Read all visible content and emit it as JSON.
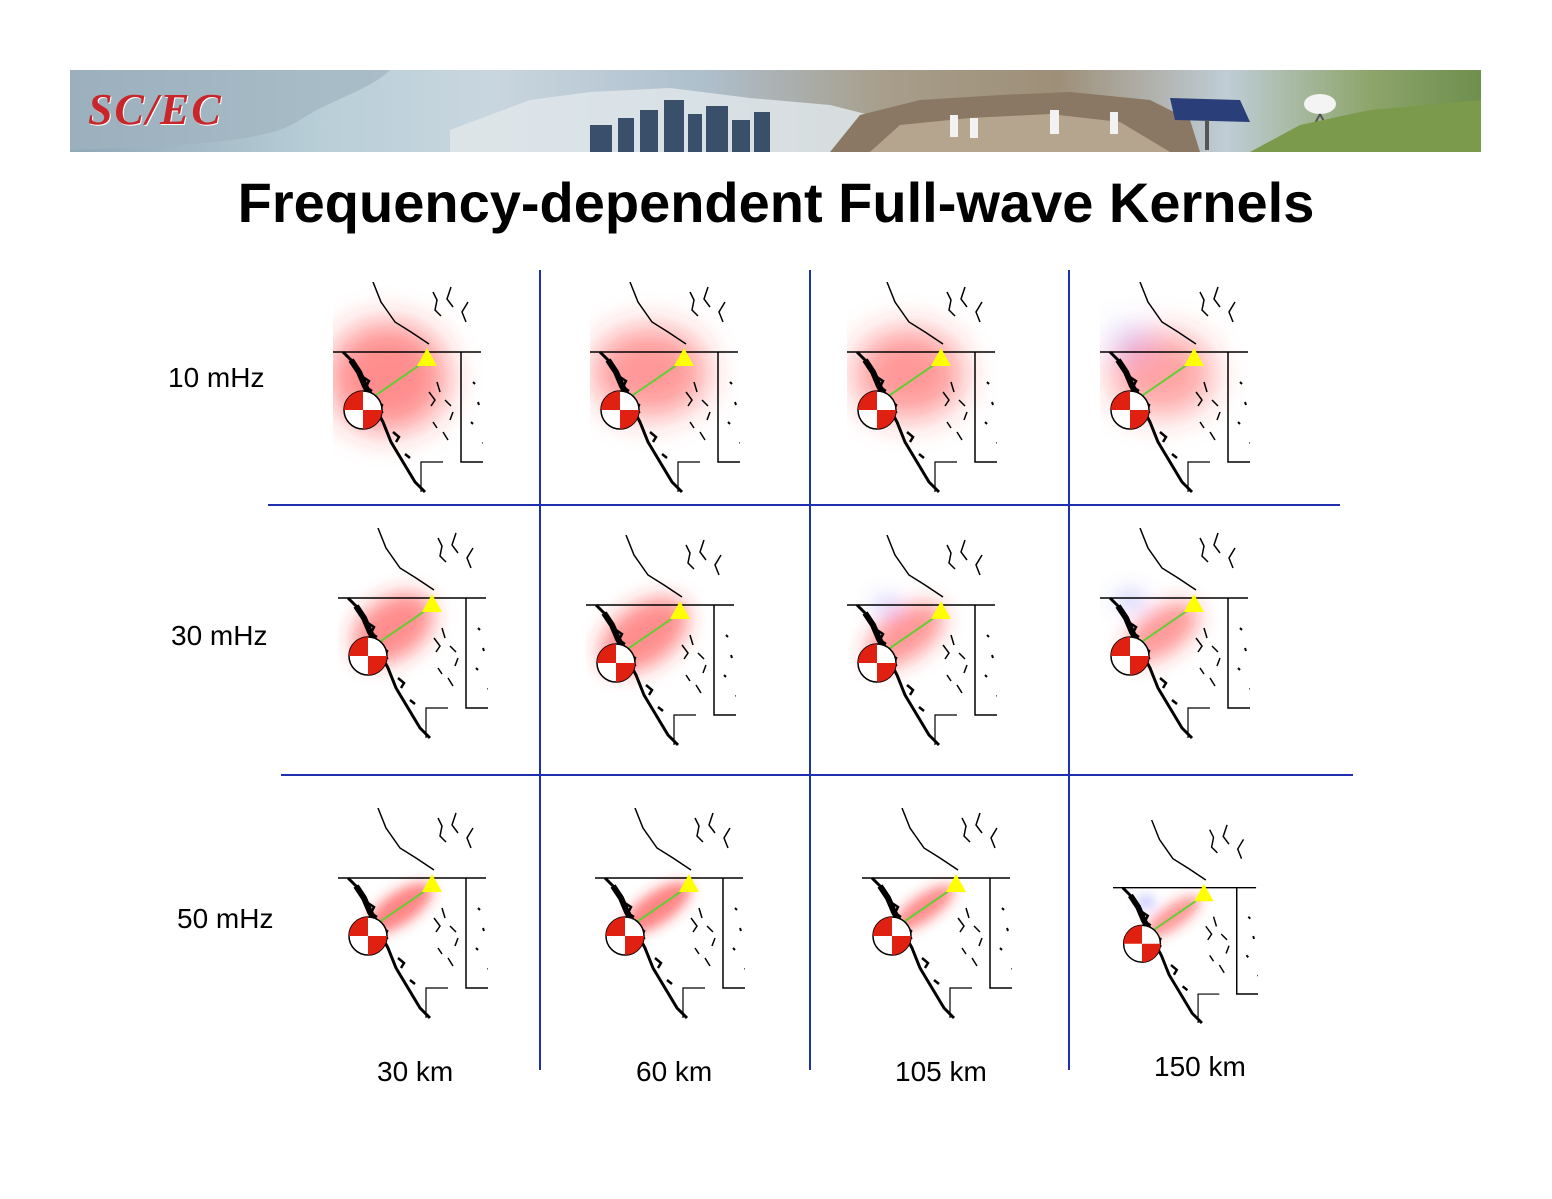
{
  "header": {
    "logo_text": "SC/EC",
    "logo_icon": "scec-logo-icon",
    "banner_icon": "photo-montage-banner"
  },
  "title": "Frequency-dependent Full-wave Kernels",
  "rows": [
    {
      "label": "10 mHz"
    },
    {
      "label": "30 mHz"
    },
    {
      "label": "50 mHz"
    }
  ],
  "columns": [
    {
      "label": "30 km"
    },
    {
      "label": "60 km"
    },
    {
      "label": "105 km"
    },
    {
      "label": "150 km"
    }
  ],
  "map_panel": {
    "icon": "kernel-map-icon",
    "station_icon": "yellow-triangle-station-icon",
    "source_icon": "focal-mechanism-beachball-icon"
  },
  "colors": {
    "grid_line": "#1f2fb0",
    "kernel_positive": "#ff3030",
    "kernel_negative": "#6a6aff",
    "station": "#ffff00",
    "ray_path": "#66cc33",
    "beachball": "#e02010",
    "logo": "#c8262a"
  }
}
